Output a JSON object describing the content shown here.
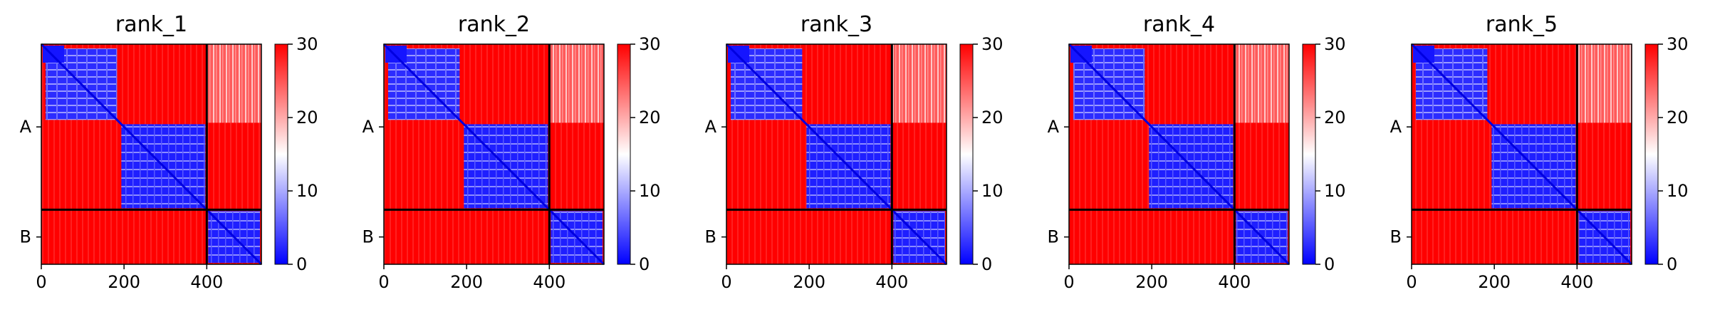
{
  "chart_data": {
    "type": "heatmap",
    "colorbar": {
      "colormap": "bwr",
      "min": 0,
      "max": 30,
      "ticks": [
        0,
        10,
        20,
        30
      ]
    },
    "x_ticks": [
      0,
      200,
      400
    ],
    "xlim": [
      0,
      532
    ],
    "chains": [
      {
        "name": "A",
        "range": [
          0,
          400
        ]
      },
      {
        "name": "B",
        "range": [
          400,
          532
        ]
      }
    ],
    "domains": [
      [
        0,
        190
      ],
      [
        190,
        400
      ],
      [
        400,
        532
      ]
    ],
    "panels": [
      {
        "title": "rank_1"
      },
      {
        "title": "rank_2"
      },
      {
        "title": "rank_3"
      },
      {
        "title": "rank_4"
      },
      {
        "title": "rank_5"
      }
    ],
    "colors": {
      "low": "#0000ff",
      "mid": "#ffffff",
      "high": "#ff0000"
    }
  }
}
